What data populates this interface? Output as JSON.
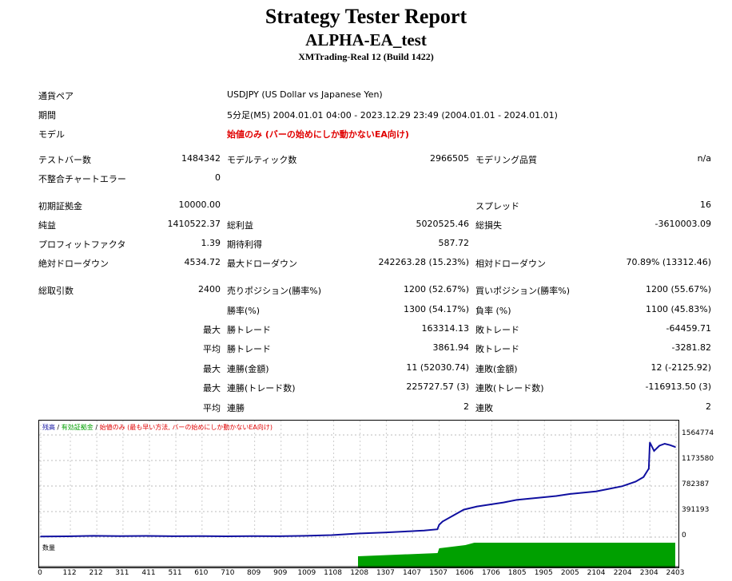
{
  "header": {
    "title": "Strategy Tester Report",
    "subtitle": "ALPHA-EA_test",
    "server": "XMTrading-Real 12 (Build 1422)"
  },
  "info": {
    "symbol_label": "通貨ペア",
    "symbol": "USDJPY (US Dollar vs Japanese Yen)",
    "period_label": "期間",
    "period": "5分足(M5) 2004.01.01 04:00 - 2023.12.29 23:49 (2004.01.01 - 2024.01.01)",
    "model_label": "モデル",
    "model": "始値のみ (バーの始めにしか動かないEA向け)"
  },
  "stats": {
    "bars_label": "テストバー数",
    "bars": "1484342",
    "ticks_label": "モデルティック数",
    "ticks": "2966505",
    "quality_label": "モデリング品質",
    "quality": "n/a",
    "mismatch_label": "不整合チャートエラー",
    "mismatch": "0",
    "deposit_label": "初期証拠金",
    "deposit": "10000.00",
    "spread_label": "スプレッド",
    "spread": "16",
    "net_label": "純益",
    "net": "1410522.37",
    "gross_profit_label": "総利益",
    "gross_profit": "5020525.46",
    "gross_loss_label": "総損失",
    "gross_loss": "-3610003.09",
    "pf_label": "プロフィットファクタ",
    "pf": "1.39",
    "payoff_label": "期待利得",
    "payoff": "587.72",
    "abs_dd_label": "絶対ドローダウン",
    "abs_dd": "4534.72",
    "max_dd_label": "最大ドローダウン",
    "max_dd": "242263.28 (15.23%)",
    "rel_dd_label": "相対ドローダウン",
    "rel_dd": "70.89% (13312.46)",
    "trades_label": "総取引数",
    "trades": "2400",
    "short_label": "売りポジション(勝率%)",
    "short": "1200 (52.67%)",
    "long_label": "買いポジション(勝率%)",
    "long": "1200 (55.67%)",
    "win_label": "勝率(%)",
    "win": "1300 (54.17%)",
    "lose_label": "負率 (%)",
    "lose": "1100 (45.83%)",
    "max_label": "最大",
    "avg_label": "平均",
    "win_trade_label": "勝トレード",
    "lose_trade_label": "敗トレード",
    "max_win": "163314.13",
    "max_loss": "-64459.71",
    "avg_win": "3861.94",
    "avg_loss": "-3281.82",
    "cons_win_money_label": "連勝(金額)",
    "cons_win_money": "11 (52030.74)",
    "cons_loss_money_label": "連敗(金額)",
    "cons_loss_money": "12 (-2125.92)",
    "cons_win_count_label": "連勝(トレード数)",
    "cons_win_count": "225727.57 (3)",
    "cons_loss_count_label": "連敗(トレード数)",
    "cons_loss_count": "-116913.50 (3)",
    "avg_cons_win_label": "連勝",
    "avg_cons_win": "2",
    "avg_cons_loss_label": "連敗",
    "avg_cons_loss": "2"
  },
  "chart_data": {
    "type": "line",
    "legend_balance": "残高",
    "legend_equity": "有効証拠金",
    "legend_model": "始値のみ (最も早い方法, バーの始めにしか動かないEA向け)",
    "volume_label": "数量",
    "y_ticks": [
      "1564774",
      "1173580",
      "782387",
      "391193",
      "0"
    ],
    "x_ticks": [
      "0",
      "112",
      "212",
      "311",
      "411",
      "511",
      "610",
      "710",
      "809",
      "909",
      "1009",
      "1108",
      "1208",
      "1307",
      "1407",
      "1507",
      "1606",
      "1706",
      "1805",
      "1905",
      "2005",
      "2104",
      "2204",
      "2304",
      "2403"
    ],
    "xlim": [
      0,
      2400
    ],
    "ylim": [
      0,
      1564774
    ],
    "x": [
      0,
      100,
      200,
      300,
      400,
      500,
      600,
      700,
      800,
      900,
      1000,
      1100,
      1200,
      1300,
      1400,
      1420,
      1450,
      1500,
      1507,
      1520,
      1560,
      1600,
      1650,
      1700,
      1750,
      1800,
      1850,
      1900,
      1950,
      2000,
      2050,
      2100,
      2150,
      2200,
      2250,
      2280,
      2300,
      2304,
      2320,
      2340,
      2360,
      2380,
      2400
    ],
    "y": [
      10000,
      12000,
      20000,
      15000,
      18000,
      14000,
      16000,
      12000,
      15000,
      14000,
      20000,
      30000,
      55000,
      70000,
      90000,
      95000,
      100000,
      120000,
      190000,
      240000,
      330000,
      420000,
      470000,
      500000,
      530000,
      570000,
      590000,
      610000,
      630000,
      660000,
      680000,
      700000,
      740000,
      780000,
      850000,
      920000,
      1050000,
      1450000,
      1320000,
      1400000,
      1430000,
      1410000,
      1380000
    ],
    "colors": {
      "balance": "#1010a0",
      "equity": "#00a000",
      "model": "#e00000"
    }
  }
}
